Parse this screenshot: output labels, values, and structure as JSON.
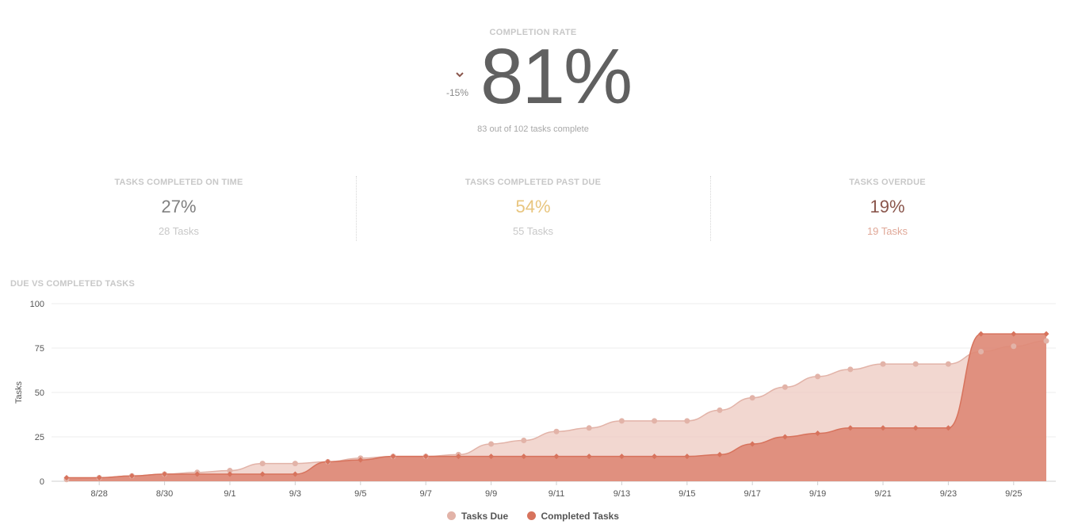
{
  "hero": {
    "label": "COMPLETION RATE",
    "value": "81%",
    "delta": "-15%",
    "delta_icon": "chevron-down-icon",
    "subtitle": "83 out of 102 tasks complete"
  },
  "stats": [
    {
      "label": "TASKS COMPLETED ON TIME",
      "value": "27%",
      "count": "28 Tasks",
      "value_color": "#808080",
      "count_color": "#c8c8c8"
    },
    {
      "label": "TASKS COMPLETED PAST DUE",
      "value": "54%",
      "count": "55 Tasks",
      "value_color": "#e8c57e",
      "count_color": "#c8c8c8"
    },
    {
      "label": "TASKS OVERDUE",
      "value": "19%",
      "count": "19 Tasks",
      "value_color": "#8a564c",
      "count_color": "#e0a898"
    }
  ],
  "chart_title": "DUE VS COMPLETED TASKS",
  "colors": {
    "due": "#e2b3a8",
    "due_fill": "#edc9c0",
    "completed": "#d7735d",
    "completed_fill": "#de8a77"
  },
  "chart_data": {
    "type": "area",
    "ylabel": "Tasks",
    "ylim": [
      0,
      100
    ],
    "yticks": [
      "0",
      "25",
      "50",
      "75",
      "100"
    ],
    "x": [
      "8/27",
      "8/28",
      "8/29",
      "8/30",
      "8/31",
      "9/1",
      "9/2",
      "9/3",
      "9/4",
      "9/5",
      "9/6",
      "9/7",
      "9/8",
      "9/9",
      "9/10",
      "9/11",
      "9/12",
      "9/13",
      "9/14",
      "9/15",
      "9/16",
      "9/17",
      "9/18",
      "9/19",
      "9/20",
      "9/21",
      "9/22",
      "9/23",
      "9/24",
      "9/25",
      "9/26"
    ],
    "xticks": [
      "8/28",
      "8/30",
      "9/1",
      "9/3",
      "9/5",
      "9/7",
      "9/9",
      "9/11",
      "9/13",
      "9/15",
      "9/17",
      "9/19",
      "9/21",
      "9/23",
      "9/25"
    ],
    "series": [
      {
        "name": "Tasks Due",
        "values": [
          1,
          2,
          3,
          4,
          5,
          6,
          10,
          10,
          11,
          13,
          14,
          14,
          15,
          21,
          23,
          28,
          30,
          34,
          34,
          34,
          40,
          47,
          53,
          59,
          63,
          66,
          66,
          66,
          73,
          76,
          79
        ]
      },
      {
        "name": "Completed Tasks",
        "values": [
          2,
          2,
          3,
          4,
          4,
          4,
          4,
          4,
          11,
          12,
          14,
          14,
          14,
          14,
          14,
          14,
          14,
          14,
          14,
          14,
          15,
          21,
          25,
          27,
          30,
          30,
          30,
          30,
          83,
          83,
          83
        ]
      }
    ],
    "grid": true,
    "legend": "bottom"
  }
}
